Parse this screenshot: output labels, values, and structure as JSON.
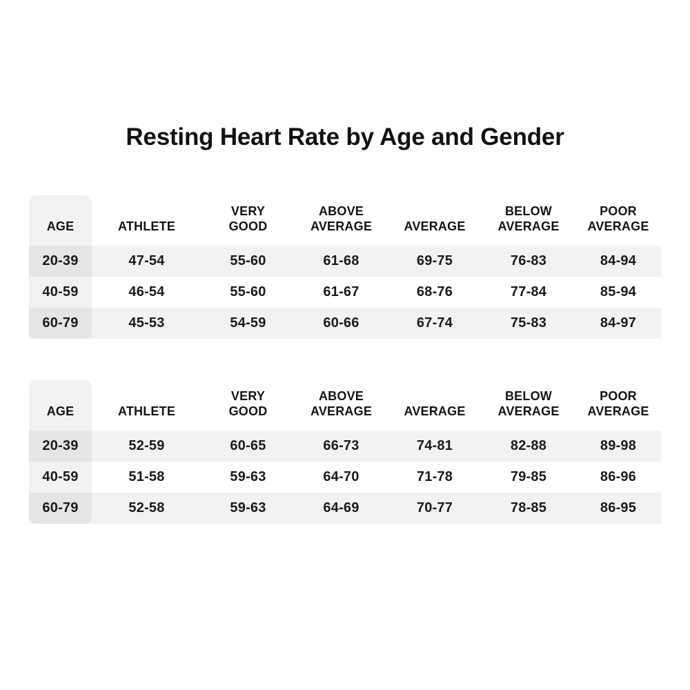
{
  "title": "Resting Heart Rate by Age and Gender",
  "columns": [
    "AGE",
    "ATHLETE",
    "VERY GOOD",
    "ABOVE AVERAGE",
    "AVERAGE",
    "BELOW AVERAGE",
    "POOR AVERAGE"
  ],
  "tables": [
    {
      "name": "heart-rate-table-1",
      "rows": [
        [
          "20-39",
          "47-54",
          "55-60",
          "61-68",
          "69-75",
          "76-83",
          "84-94"
        ],
        [
          "40-59",
          "46-54",
          "55-60",
          "61-67",
          "68-76",
          "77-84",
          "85-94"
        ],
        [
          "60-79",
          "45-53",
          "54-59",
          "60-66",
          "67-74",
          "75-83",
          "84-97"
        ]
      ]
    },
    {
      "name": "heart-rate-table-2",
      "rows": [
        [
          "20-39",
          "52-59",
          "60-65",
          "66-73",
          "74-81",
          "82-88",
          "89-98"
        ],
        [
          "40-59",
          "51-58",
          "59-63",
          "64-70",
          "71-78",
          "79-85",
          "86-96"
        ],
        [
          "60-79",
          "52-58",
          "59-63",
          "64-69",
          "70-77",
          "78-85",
          "86-95"
        ]
      ]
    }
  ],
  "colors": {
    "stripe": "rgba(17,17,17,0.055)",
    "title_text": "#111111",
    "body_text": "#1a1a1a",
    "background": "#ffffff"
  }
}
